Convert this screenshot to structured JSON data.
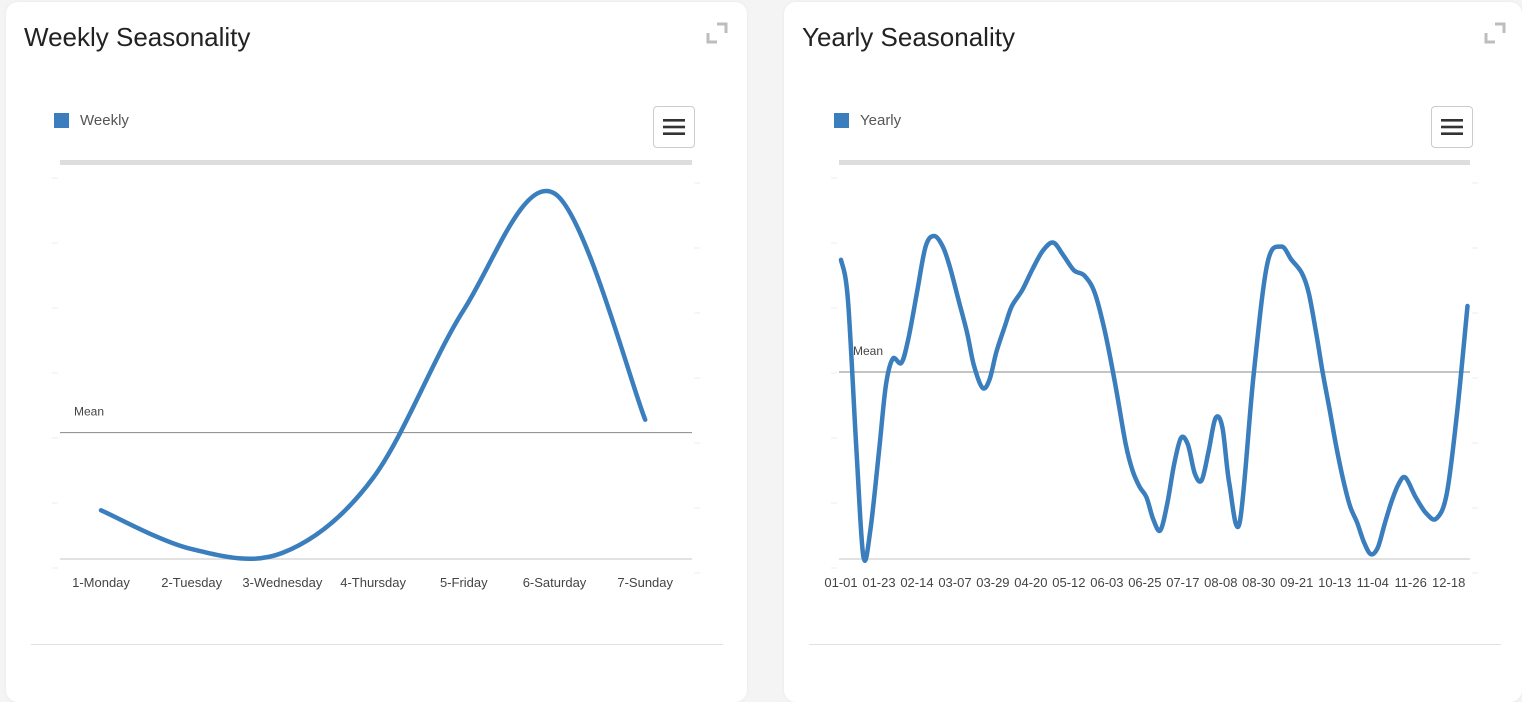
{
  "colors": {
    "series": "#3a7ebd",
    "mean_line": "#888888",
    "navigator": "#dddddd"
  },
  "icons": {
    "expand": "expand-icon",
    "menu": "hamburger-menu-icon"
  },
  "charts": {
    "weekly": {
      "title": "Weekly Seasonality",
      "legend_label": "Weekly",
      "mean_label": "Mean"
    },
    "yearly": {
      "title": "Yearly Seasonality",
      "legend_label": "Yearly",
      "mean_label": "Mean"
    }
  },
  "chart_data": [
    {
      "type": "line",
      "title": "Weekly Seasonality",
      "categories": [
        "1-Monday",
        "2-Tuesday",
        "3-Wednesday",
        "4-Thursday",
        "5-Friday",
        "6-Saturday",
        "7-Sunday"
      ],
      "series": [
        {
          "name": "Weekly",
          "values": [
            -0.6,
            -0.9,
            -0.93,
            -0.35,
            0.95,
            1.85,
            0.1
          ]
        }
      ],
      "ylim": [
        -1.0,
        2.0
      ],
      "mean": 0.0,
      "grid": false,
      "legend": "top-left"
    },
    {
      "type": "line",
      "title": "Yearly Seasonality",
      "categories": [
        "01-01",
        "01-23",
        "02-14",
        "03-07",
        "03-29",
        "04-20",
        "05-12",
        "06-03",
        "06-25",
        "07-17",
        "08-08",
        "08-30",
        "09-21",
        "10-13",
        "11-04",
        "11-26",
        "12-18"
      ],
      "x": [
        1,
        5,
        10,
        14,
        18,
        23,
        27,
        31,
        36,
        40,
        45,
        50,
        55,
        60,
        64,
        69,
        74,
        78,
        83,
        87,
        91,
        96,
        100,
        106,
        112,
        118,
        124,
        130,
        136,
        142,
        148,
        154,
        160,
        166,
        170,
        174,
        178,
        182,
        186,
        190,
        194,
        198,
        202,
        206,
        210,
        214,
        218,
        222,
        226,
        232,
        240,
        248,
        256,
        262,
        268,
        272,
        276,
        280,
        284,
        288,
        292,
        296,
        300,
        304,
        308,
        312,
        316,
        320,
        324,
        328,
        334,
        340,
        346,
        352,
        358,
        364
      ],
      "series": [
        {
          "name": "Yearly",
          "values": [
            0.85,
            0.55,
            -0.6,
            -1.4,
            -1.2,
            -0.6,
            -0.1,
            0.1,
            0.07,
            0.25,
            0.6,
            0.95,
            1.03,
            0.95,
            0.8,
            0.55,
            0.3,
            0.05,
            -0.12,
            -0.06,
            0.15,
            0.35,
            0.5,
            0.62,
            0.78,
            0.92,
            0.98,
            0.88,
            0.77,
            0.73,
            0.6,
            0.3,
            -0.1,
            -0.55,
            -0.75,
            -0.87,
            -0.95,
            -1.12,
            -1.2,
            -1.0,
            -0.7,
            -0.5,
            -0.55,
            -0.77,
            -0.82,
            -0.6,
            -0.35,
            -0.42,
            -0.85,
            -1.14,
            -0.03,
            0.82,
            0.95,
            0.85,
            0.75,
            0.6,
            0.32,
            0.0,
            -0.28,
            -0.57,
            -0.82,
            -1.02,
            -1.14,
            -1.29,
            -1.38,
            -1.33,
            -1.15,
            -0.98,
            -0.85,
            -0.8,
            -0.95,
            -1.07,
            -1.11,
            -0.92,
            -0.3,
            0.5
          ]
        }
      ],
      "ylim": [
        -1.5,
        1.5
      ],
      "mean": 0.0,
      "grid": false,
      "legend": "top-left"
    }
  ]
}
